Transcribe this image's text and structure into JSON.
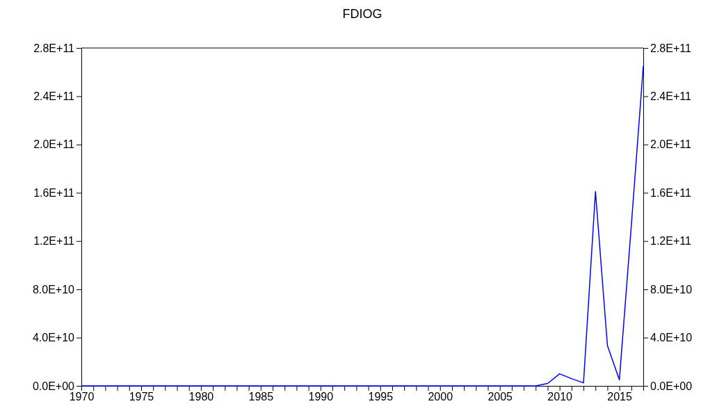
{
  "chart_data": {
    "type": "line",
    "title": "FDIOG",
    "x": [
      1970,
      1971,
      1972,
      1973,
      1974,
      1975,
      1976,
      1977,
      1978,
      1979,
      1980,
      1981,
      1982,
      1983,
      1984,
      1985,
      1986,
      1987,
      1988,
      1989,
      1990,
      1991,
      1992,
      1993,
      1994,
      1995,
      1996,
      1997,
      1998,
      1999,
      2000,
      2001,
      2002,
      2003,
      2004,
      2005,
      2006,
      2007,
      2008,
      2009,
      2010,
      2011,
      2012,
      2013,
      2014,
      2015,
      2016,
      2017
    ],
    "series": [
      {
        "color": "#0000ff",
        "values": [
          0,
          0,
          0,
          0,
          0,
          0,
          0,
          0,
          0,
          0,
          0,
          0,
          0,
          0,
          0,
          0,
          0,
          0,
          0,
          0,
          0,
          0,
          0,
          0,
          0,
          0,
          0,
          0,
          0,
          0,
          0,
          0,
          0,
          0,
          0,
          0,
          0,
          0,
          0,
          2000000000,
          10000000000,
          6000000000,
          2500000000,
          161000000000,
          33400000000,
          5000000000,
          133000000000,
          265000000000
        ]
      }
    ],
    "xlim": [
      1970,
      2017
    ],
    "xticks": [
      1970,
      {
        "value": 1971,
        "label": null
      },
      {
        "value": 1972,
        "label": null
      },
      {
        "value": 1973,
        "label": null
      },
      {
        "value": 1974,
        "label": null
      },
      1975,
      {
        "value": 1976,
        "label": null
      },
      {
        "value": 1977,
        "label": null
      },
      {
        "value": 1978,
        "label": null
      },
      {
        "value": 1979,
        "label": null
      },
      1980,
      {
        "value": 1981,
        "label": null
      },
      {
        "value": 1982,
        "label": null
      },
      {
        "value": 1983,
        "label": null
      },
      {
        "value": 1984,
        "label": null
      },
      1985,
      {
        "value": 1986,
        "label": null
      },
      {
        "value": 1987,
        "label": null
      },
      {
        "value": 1988,
        "label": null
      },
      {
        "value": 1989,
        "label": null
      },
      1990,
      {
        "value": 1991,
        "label": null
      },
      {
        "value": 1992,
        "label": null
      },
      {
        "value": 1993,
        "label": null
      },
      {
        "value": 1994,
        "label": null
      },
      1995,
      {
        "value": 1996,
        "label": null
      },
      {
        "value": 1997,
        "label": null
      },
      {
        "value": 1998,
        "label": null
      },
      {
        "value": 1999,
        "label": null
      },
      2000,
      {
        "value": 2001,
        "label": null
      },
      {
        "value": 2002,
        "label": null
      },
      {
        "value": 2003,
        "label": null
      },
      {
        "value": 2004,
        "label": null
      },
      2005,
      {
        "value": 2006,
        "label": null
      },
      {
        "value": 2007,
        "label": null
      },
      {
        "value": 2008,
        "label": null
      },
      {
        "value": 2009,
        "label": null
      },
      2010,
      {
        "value": 2011,
        "label": null
      },
      {
        "value": 2012,
        "label": null
      },
      {
        "value": 2013,
        "label": null
      },
      {
        "value": 2014,
        "label": null
      },
      2015,
      {
        "value": 2016,
        "label": null
      },
      {
        "value": 2017,
        "label": null
      }
    ],
    "ylim": [
      0,
      280000000000
    ],
    "yticks": [
      {
        "value": 0,
        "label": "0.0E+00"
      },
      {
        "value": 40000000000,
        "label": "4.0E+10"
      },
      {
        "value": 80000000000,
        "label": "8.0E+10"
      },
      {
        "value": 120000000000,
        "label": "1.2E+11"
      },
      {
        "value": 160000000000,
        "label": "1.6E+11"
      },
      {
        "value": 200000000000,
        "label": "2.0E+11"
      },
      {
        "value": 240000000000,
        "label": "2.4E+11"
      },
      {
        "value": 280000000000,
        "label": "2.8E+11"
      }
    ],
    "y2lim": [
      0,
      280000000000
    ],
    "y2ticks": [
      {
        "value": 0,
        "label": "0.0E+00"
      },
      {
        "value": 40000000000,
        "label": "4.0E+10"
      },
      {
        "value": 80000000000,
        "label": "8.0E+10"
      },
      {
        "value": 120000000000,
        "label": "1.2E+11"
      },
      {
        "value": 160000000000,
        "label": "1.6E+11"
      },
      {
        "value": 200000000000,
        "label": "2.0E+11"
      },
      {
        "value": 240000000000,
        "label": "2.4E+11"
      },
      {
        "value": 280000000000,
        "label": "2.8E+11"
      }
    ],
    "grid": false
  }
}
